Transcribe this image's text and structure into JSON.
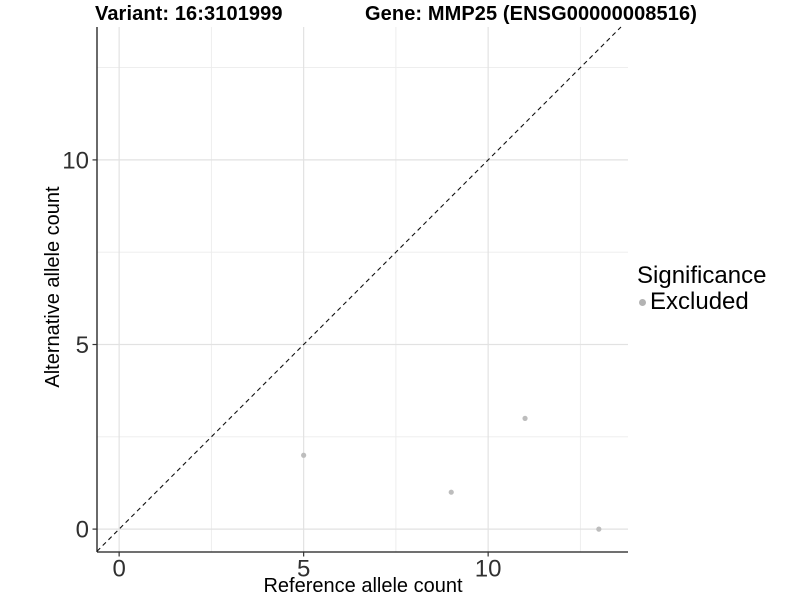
{
  "header": {
    "variant_title": "Variant: 16:3101999",
    "gene_title": "Gene: MMP25 (ENSG00000008516)"
  },
  "chart_data": {
    "type": "scatter",
    "title": "Variant: 16:3101999  /  Gene: MMP25 (ENSG00000008516)",
    "xlabel": "Reference allele count",
    "ylabel": "Alternative allele count",
    "xlim": [
      -0.6,
      13.79
    ],
    "ylim": [
      -0.62,
      13.6
    ],
    "x_major_ticks": [
      0,
      5,
      10
    ],
    "x_minor_ticks": [
      2.5,
      7.5,
      12.5
    ],
    "y_major_ticks": [
      0,
      5,
      10
    ],
    "y_minor_ticks": [
      2.5,
      7.5,
      12.5
    ],
    "grid": true,
    "identity_line": true,
    "legend_position": "right",
    "series": [
      {
        "name": "Excluded",
        "color": "#bdbdbd",
        "points": [
          [
            5,
            2
          ],
          [
            9,
            1
          ],
          [
            11,
            3
          ],
          [
            13,
            0
          ]
        ]
      }
    ]
  },
  "legend": {
    "title": "Significance",
    "items": [
      {
        "label": "Excluded",
        "color": "#b3b3b3"
      }
    ]
  },
  "colors": {
    "background": "#ffffff",
    "grid_major": "#e2e2e2",
    "grid_minor": "#ececec",
    "axis_line": "#1a1a1a",
    "tick_mark": "#333333",
    "tick_label": "#303030",
    "identity_line": "#111111",
    "point": "#bdbdbd"
  }
}
